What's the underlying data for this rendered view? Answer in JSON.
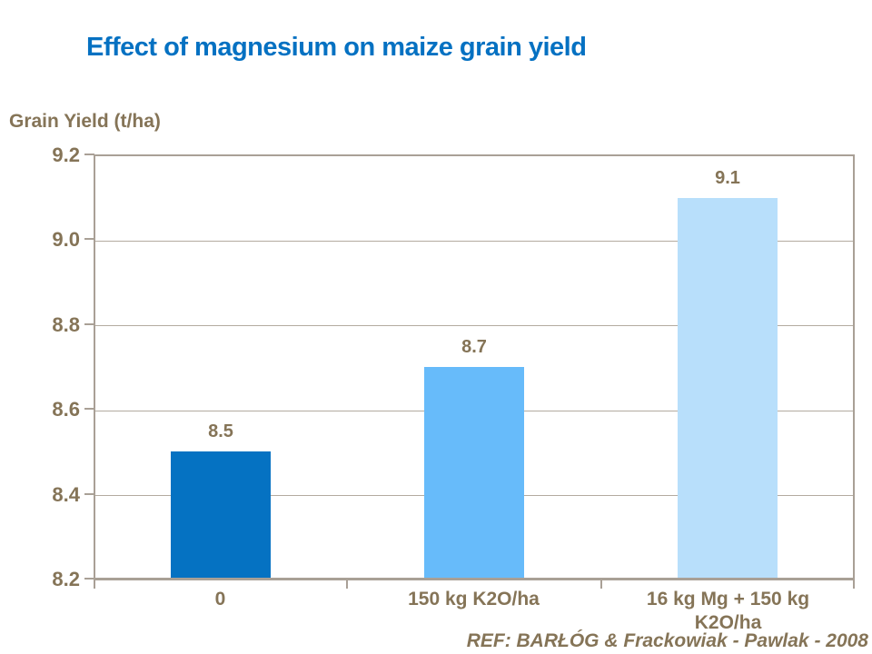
{
  "slide": {
    "title": "Effect of magnesium on maize grain yield",
    "reference": "REF:  BARŁÓG & Frackowiak - Pawlak - 2008"
  },
  "colors": {
    "title": "#0571C2",
    "text": "#857457",
    "axis": "#A9A096",
    "gridline": "#B3ABA0",
    "bar_dark_blue": "#0572C2",
    "bar_medium_blue": "#67BBFA",
    "bar_light_blue": "#B8DFFB"
  },
  "chart_data": {
    "type": "bar",
    "title": "Effect of magnesium on maize grain yield",
    "ylabel": "Grain Yield (t/ha)",
    "xlabel": "",
    "categories": [
      "0",
      "150 kg K2O/ha",
      "16 kg Mg + 150 kg K2O/ha"
    ],
    "values": [
      8.5,
      8.7,
      9.1
    ],
    "data_labels": [
      "8.5",
      "8.7",
      "9.1"
    ],
    "bar_colors": [
      "#0572C2",
      "#67BBFA",
      "#B8DFFB"
    ],
    "ylim": [
      8.2,
      9.2
    ],
    "ytick_values": [
      9.2,
      9.0,
      8.8,
      8.6,
      8.4,
      8.2
    ],
    "ytick_labels": [
      "9.2",
      "9.0",
      "8.8",
      "8.6",
      "8.4",
      "8.2"
    ],
    "grid": true,
    "legend": false,
    "reference": "REF:  BARŁÓG & Frackowiak - Pawlak - 2008"
  }
}
